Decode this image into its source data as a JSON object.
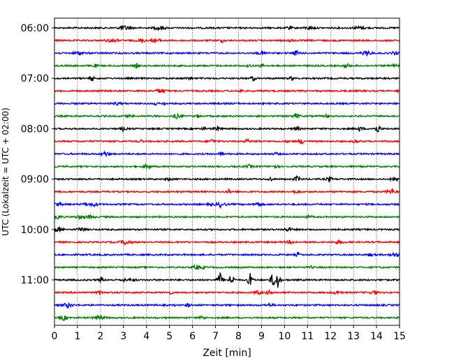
{
  "chart_data": {
    "type": "line",
    "title": "",
    "xlabel": "Zeit  [min]",
    "ylabel": "UTC (Lokalzeit = UTC + 02:00)",
    "xlim": [
      0,
      15
    ],
    "xticks": [
      "0",
      "1",
      "2",
      "3",
      "4",
      "5",
      "6",
      "7",
      "8",
      "9",
      "10",
      "11",
      "12",
      "13",
      "14",
      "15"
    ],
    "yticks": [
      "06:00",
      "07:00",
      "08:00",
      "09:00",
      "10:00",
      "11:00"
    ],
    "grid": "x",
    "colors": [
      "#000000",
      "#ff0000",
      "#0000ff",
      "#008000"
    ],
    "traces": [
      {
        "start": "06:00",
        "color": "#000000"
      },
      {
        "start": "06:15",
        "color": "#ff0000"
      },
      {
        "start": "06:30",
        "color": "#0000ff"
      },
      {
        "start": "06:45",
        "color": "#008000"
      },
      {
        "start": "07:00",
        "color": "#000000"
      },
      {
        "start": "07:15",
        "color": "#ff0000"
      },
      {
        "start": "07:30",
        "color": "#0000ff"
      },
      {
        "start": "07:45",
        "color": "#008000"
      },
      {
        "start": "08:00",
        "color": "#000000"
      },
      {
        "start": "08:15",
        "color": "#ff0000"
      },
      {
        "start": "08:30",
        "color": "#0000ff"
      },
      {
        "start": "08:45",
        "color": "#008000"
      },
      {
        "start": "09:00",
        "color": "#000000"
      },
      {
        "start": "09:15",
        "color": "#ff0000"
      },
      {
        "start": "09:30",
        "color": "#0000ff"
      },
      {
        "start": "09:45",
        "color": "#008000"
      },
      {
        "start": "10:00",
        "color": "#000000"
      },
      {
        "start": "10:15",
        "color": "#ff0000"
      },
      {
        "start": "10:30",
        "color": "#0000ff"
      },
      {
        "start": "10:45",
        "color": "#008000"
      },
      {
        "start": "11:00",
        "color": "#000000",
        "events_min": [
          7.2,
          7.7,
          8.5,
          9.5,
          9.7
        ]
      },
      {
        "start": "11:15",
        "color": "#ff0000"
      },
      {
        "start": "11:30",
        "color": "#0000ff"
      },
      {
        "start": "11:45",
        "color": "#008000"
      }
    ]
  }
}
